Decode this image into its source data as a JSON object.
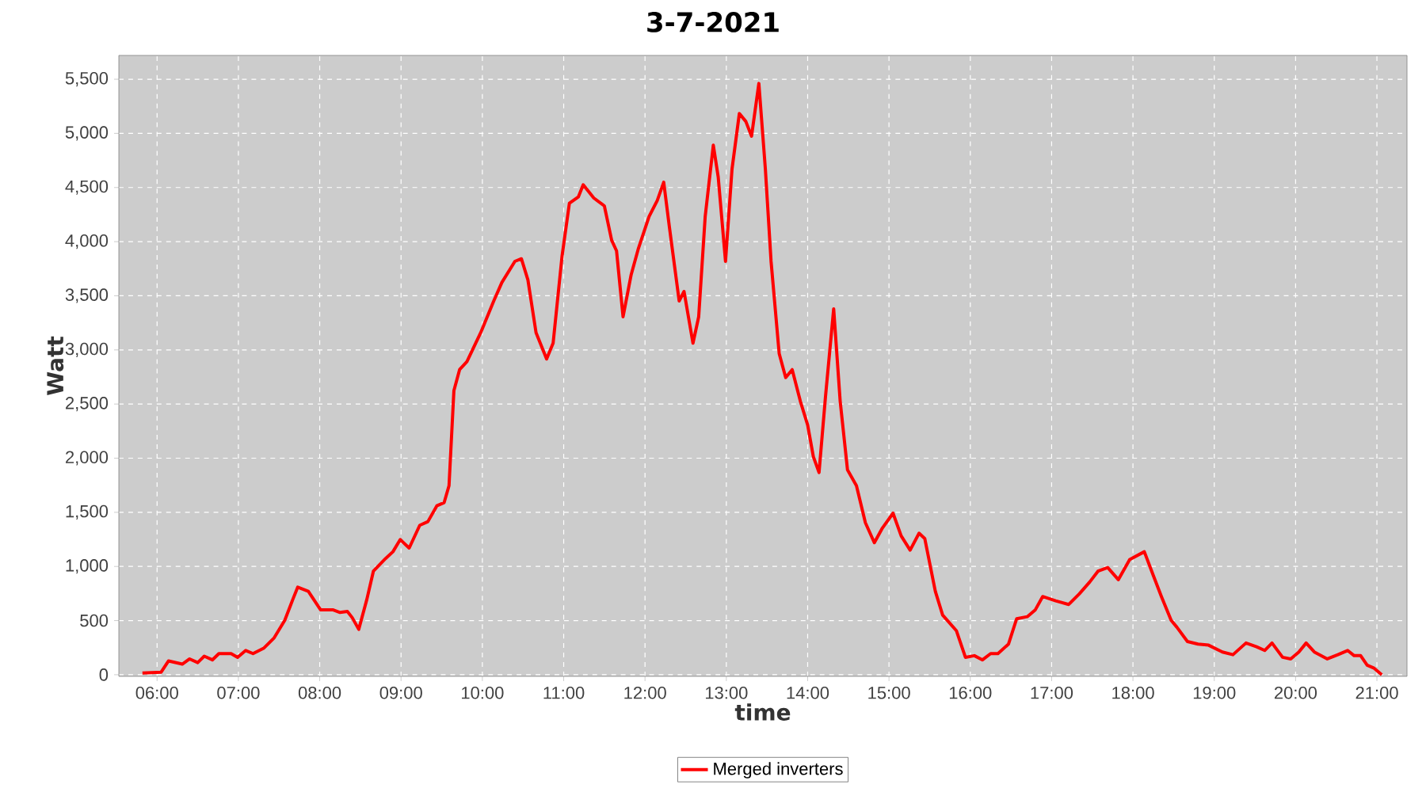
{
  "chart_data": {
    "type": "line",
    "title": "3-7-2021",
    "xlabel": "time",
    "ylabel": "Watt",
    "x": [
      5.82,
      6.05,
      6.14,
      6.31,
      6.4,
      6.5,
      6.58,
      6.68,
      6.76,
      6.91,
      6.99,
      7.09,
      7.18,
      7.31,
      7.44,
      7.57,
      7.67,
      7.73,
      7.86,
      8.01,
      8.16,
      8.25,
      8.34,
      8.4,
      8.48,
      8.58,
      8.66,
      8.81,
      8.9,
      8.99,
      9.1,
      9.23,
      9.33,
      9.44,
      9.53,
      9.59,
      9.65,
      9.72,
      9.81,
      9.98,
      10.14,
      10.24,
      10.4,
      10.48,
      10.56,
      10.66,
      10.79,
      10.87,
      10.98,
      11.07,
      11.18,
      11.24,
      11.37,
      11.5,
      11.59,
      11.65,
      11.73,
      11.83,
      11.92,
      12.05,
      12.15,
      12.23,
      12.3,
      12.42,
      12.48,
      12.59,
      12.66,
      12.74,
      12.84,
      12.9,
      12.99,
      13.07,
      13.16,
      13.24,
      13.31,
      13.4,
      13.48,
      13.55,
      13.65,
      13.73,
      13.81,
      13.91,
      14.0,
      14.07,
      14.14,
      14.22,
      14.32,
      14.4,
      14.49,
      14.6,
      14.71,
      14.82,
      14.92,
      15.05,
      15.15,
      15.26,
      15.37,
      15.44,
      15.57,
      15.66,
      15.83,
      15.94,
      16.05,
      16.15,
      16.25,
      16.34,
      16.47,
      16.57,
      16.7,
      16.8,
      16.89,
      17.05,
      17.21,
      17.34,
      17.47,
      17.57,
      17.69,
      17.82,
      17.96,
      18.14,
      18.25,
      18.35,
      18.47,
      18.54,
      18.67,
      18.8,
      18.93,
      19.1,
      19.23,
      19.39,
      19.52,
      19.62,
      19.71,
      19.84,
      19.94,
      20.04,
      20.13,
      20.23,
      20.39,
      20.52,
      20.64,
      20.72,
      20.8,
      20.88,
      20.96,
      21.06
    ],
    "series": [
      {
        "name": "Merged inverters",
        "color": "#ff0000",
        "values": [
          15,
          24,
          127,
          98,
          146,
          112,
          171,
          137,
          195,
          195,
          161,
          224,
          195,
          244,
          341,
          502,
          697,
          809,
          770,
          600,
          600,
          575,
          585,
          527,
          419,
          697,
          956,
          1073,
          1136,
          1248,
          1170,
          1380,
          1414,
          1560,
          1590,
          1746,
          2623,
          2818,
          2891,
          3160,
          3452,
          3623,
          3818,
          3842,
          3647,
          3160,
          2916,
          3062,
          3867,
          4354,
          4413,
          4525,
          4403,
          4330,
          4013,
          3915,
          3306,
          3696,
          3940,
          4232,
          4379,
          4549,
          4135,
          3452,
          3540,
          3062,
          3306,
          4232,
          4891,
          4598,
          3818,
          4671,
          5183,
          5110,
          4974,
          5461,
          4671,
          3818,
          2965,
          2745,
          2818,
          2526,
          2306,
          2014,
          1867,
          2574,
          3379,
          2526,
          1892,
          1746,
          1404,
          1219,
          1356,
          1492,
          1282,
          1151,
          1307,
          1258,
          770,
          551,
          405,
          161,
          176,
          137,
          195,
          195,
          283,
          517,
          536,
          600,
          722,
          683,
          649,
          746,
          858,
          956,
          990,
          878,
          1063,
          1136,
          917,
          722,
          502,
          439,
          307,
          283,
          273,
          210,
          185,
          293,
          258,
          224,
          293,
          161,
          146,
          210,
          293,
          210,
          146,
          185,
          224,
          176,
          176,
          88,
          63,
          0
        ]
      }
    ],
    "xlim": [
      5.53,
      21.37
    ],
    "ylim": [
      -15,
      5720
    ],
    "xticks": [
      {
        "value": 6,
        "label": "06:00"
      },
      {
        "value": 7,
        "label": "07:00"
      },
      {
        "value": 8,
        "label": "08:00"
      },
      {
        "value": 9,
        "label": "09:00"
      },
      {
        "value": 10,
        "label": "10:00"
      },
      {
        "value": 11,
        "label": "11:00"
      },
      {
        "value": 12,
        "label": "12:00"
      },
      {
        "value": 13,
        "label": "13:00"
      },
      {
        "value": 14,
        "label": "14:00"
      },
      {
        "value": 15,
        "label": "15:00"
      },
      {
        "value": 16,
        "label": "16:00"
      },
      {
        "value": 17,
        "label": "17:00"
      },
      {
        "value": 18,
        "label": "18:00"
      },
      {
        "value": 19,
        "label": "19:00"
      },
      {
        "value": 20,
        "label": "20:00"
      },
      {
        "value": 21,
        "label": "21:00"
      }
    ],
    "yticks": [
      0,
      500,
      {
        "value": 1000,
        "label": "1,000"
      },
      {
        "value": 1500,
        "label": "1,500"
      },
      {
        "value": 2000,
        "label": "2,000"
      },
      {
        "value": 2500,
        "label": "2,500"
      },
      {
        "value": 3000,
        "label": "3,000"
      },
      {
        "value": 3500,
        "label": "3,500"
      },
      {
        "value": 4000,
        "label": "4,000"
      },
      {
        "value": 4500,
        "label": "4,500"
      },
      {
        "value": 5000,
        "label": "5,000"
      },
      {
        "value": 5500,
        "label": "5,500"
      }
    ],
    "grid": true,
    "legend": "bottom",
    "marker": "none",
    "line_style": "solid"
  }
}
